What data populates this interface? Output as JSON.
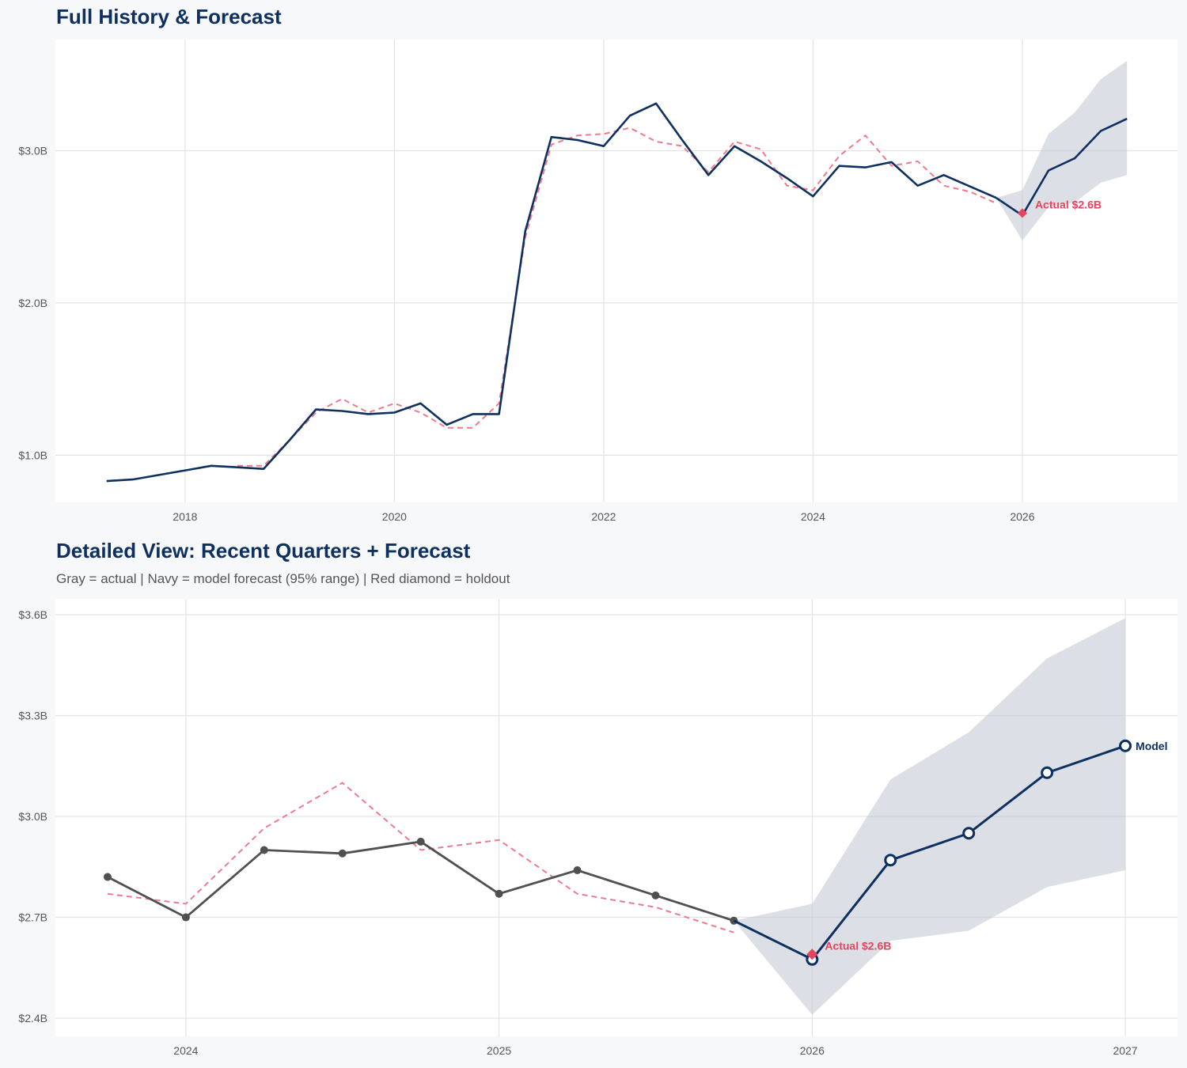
{
  "colors": {
    "actual_top": "#0d3060",
    "actual_detail": "#505050",
    "forecast": "#0d3060",
    "band": "#c5ccd6",
    "backtest": "#f07a8c",
    "holdout": "#e8435e",
    "grid": "#e3e3e3",
    "panel": "#ffffff"
  },
  "chart_data": {
    "type": "line",
    "series": {
      "actual": {
        "x": [
          "2017-04-01",
          "2017-07-01",
          "2017-10-01",
          "2018-01-01",
          "2018-04-01",
          "2018-07-01",
          "2018-10-01",
          "2019-01-01",
          "2019-04-01",
          "2019-07-01",
          "2019-10-01",
          "2020-01-01",
          "2020-04-01",
          "2020-07-01",
          "2020-10-01",
          "2021-01-01",
          "2021-04-01",
          "2021-07-01",
          "2021-10-01",
          "2022-01-01",
          "2022-04-01",
          "2022-07-01",
          "2022-10-01",
          "2023-01-01",
          "2023-04-01",
          "2023-07-01",
          "2023-10-01",
          "2024-01-01",
          "2024-04-01",
          "2024-07-01",
          "2024-10-01",
          "2025-01-01",
          "2025-04-01",
          "2025-07-01",
          "2025-10-01"
        ],
        "y": [
          0.83,
          0.84,
          0.87,
          0.9,
          0.93,
          0.92,
          0.91,
          1.1,
          1.3,
          1.29,
          1.27,
          1.28,
          1.34,
          1.2,
          1.27,
          1.27,
          2.47,
          3.09,
          3.07,
          3.03,
          3.23,
          3.31,
          3.07,
          2.84,
          3.03,
          2.93,
          2.82,
          2.7,
          2.9,
          2.89,
          2.925,
          2.77,
          2.84,
          2.765,
          2.69
        ]
      },
      "backtest": {
        "x": [
          "2018-07-01",
          "2018-10-01",
          "2019-01-01",
          "2019-04-01",
          "2019-07-01",
          "2019-10-01",
          "2020-01-01",
          "2020-04-01",
          "2020-07-01",
          "2020-10-01",
          "2021-01-01",
          "2021-04-01",
          "2021-07-01",
          "2021-10-01",
          "2022-01-01",
          "2022-04-01",
          "2022-07-01",
          "2022-10-01",
          "2023-01-01",
          "2023-04-01",
          "2023-07-01",
          "2023-10-01",
          "2024-01-01",
          "2024-04-01",
          "2024-07-01",
          "2024-10-01",
          "2025-01-01",
          "2025-04-01",
          "2025-07-01",
          "2025-10-01"
        ],
        "y": [
          0.93,
          0.93,
          1.1,
          1.28,
          1.37,
          1.28,
          1.34,
          1.28,
          1.18,
          1.18,
          1.34,
          2.43,
          3.04,
          3.1,
          3.11,
          3.15,
          3.06,
          3.03,
          2.86,
          3.06,
          3.01,
          2.77,
          2.74,
          2.965,
          3.1,
          2.9,
          2.93,
          2.77,
          2.73,
          2.655
        ]
      },
      "forecast": {
        "x": [
          "2025-10-01",
          "2026-01-01",
          "2026-04-01",
          "2026-07-01",
          "2026-10-01",
          "2027-01-01"
        ],
        "y": [
          2.69,
          2.575,
          2.87,
          2.95,
          3.13,
          3.21
        ],
        "lower": [
          2.69,
          2.41,
          2.63,
          2.66,
          2.79,
          2.84
        ],
        "upper": [
          2.69,
          2.74,
          3.11,
          3.25,
          3.47,
          3.59
        ]
      },
      "holdout": {
        "x": "2026-01-01",
        "y": 2.59
      }
    },
    "panels": [
      {
        "title": "Full History & Forecast",
        "subtitle": "",
        "xlim": [
          "2016-10-05",
          "2027-06-25"
        ],
        "ylim": [
          0.69,
          3.73
        ],
        "xticks": [
          {
            "x": "2018-01-01",
            "label": "2018"
          },
          {
            "x": "2020-01-01",
            "label": "2020"
          },
          {
            "x": "2022-01-01",
            "label": "2022"
          },
          {
            "x": "2024-01-01",
            "label": "2024"
          },
          {
            "x": "2026-01-01",
            "label": "2026"
          }
        ],
        "yticks": [
          {
            "y": 1.0,
            "label": "$1.0B"
          },
          {
            "y": 2.0,
            "label": "$2.0B"
          },
          {
            "y": 3.0,
            "label": "$3.0B"
          }
        ],
        "annotations": [
          {
            "text": "Actual $2.6B",
            "target": "holdout"
          }
        ],
        "grid": true
      },
      {
        "title": "Detailed View: Recent Quarters + Forecast",
        "subtitle": "Gray = actual  |  Navy = model forecast (95% range)  |  Red diamond = holdout",
        "xlim": [
          "2023-08-01",
          "2027-03-01"
        ],
        "ylim": [
          2.346,
          3.647
        ],
        "x_from": "2023-10-01",
        "xticks": [
          {
            "x": "2024-01-01",
            "label": "2024"
          },
          {
            "x": "2025-01-01",
            "label": "2025"
          },
          {
            "x": "2026-01-01",
            "label": "2026"
          },
          {
            "x": "2027-01-01",
            "label": "2027"
          }
        ],
        "yticks": [
          {
            "y": 2.4,
            "label": "$2.4B"
          },
          {
            "y": 2.7,
            "label": "$2.7B"
          },
          {
            "y": 3.0,
            "label": "$3.0B"
          },
          {
            "y": 3.3,
            "label": "$3.3B"
          },
          {
            "y": 3.6,
            "label": "$3.6B"
          }
        ],
        "annotations": [
          {
            "text": "Actual $2.6B",
            "target": "holdout"
          },
          {
            "text": "Model",
            "target": "forecast-end"
          }
        ],
        "grid": true
      }
    ]
  }
}
